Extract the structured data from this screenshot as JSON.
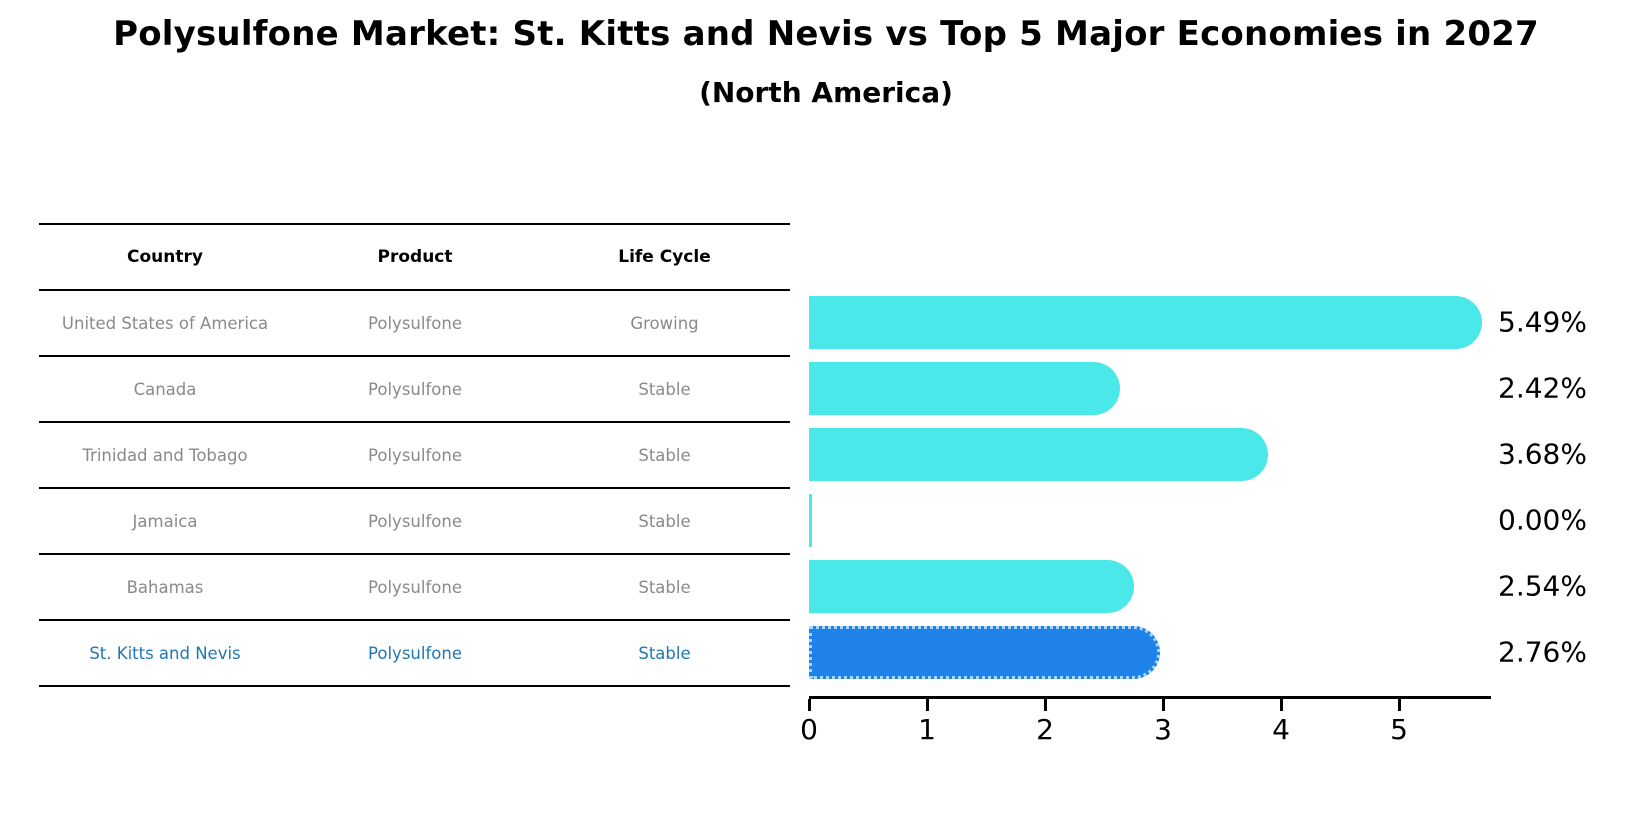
{
  "title": "Polysulfone Market: St. Kitts and Nevis vs Top 5 Major Economies in 2027",
  "subtitle": "(North America)",
  "table": {
    "headers": [
      "Country",
      "Product",
      "Life Cycle"
    ],
    "rows": [
      {
        "country": "United States of America",
        "product": "Polysulfone",
        "life_cycle": "Growing"
      },
      {
        "country": "Canada",
        "product": "Polysulfone",
        "life_cycle": "Stable"
      },
      {
        "country": "Trinidad and Tobago",
        "product": "Polysulfone",
        "life_cycle": "Stable"
      },
      {
        "country": "Jamaica",
        "product": "Polysulfone",
        "life_cycle": "Stable"
      },
      {
        "country": "Bahamas",
        "product": "Polysulfone",
        "life_cycle": "Stable"
      },
      {
        "country": "St. Kitts and Nevis",
        "product": "Polysulfone",
        "life_cycle": "Stable"
      }
    ],
    "highlight_row_index": 5
  },
  "chart_data": {
    "type": "bar",
    "orientation": "horizontal",
    "categories": [
      "United States of America",
      "Canada",
      "Trinidad and Tobago",
      "Jamaica",
      "Bahamas",
      "St. Kitts and Nevis"
    ],
    "values": [
      5.49,
      2.42,
      3.68,
      0.0,
      2.54,
      2.76
    ],
    "value_labels": [
      "5.49%",
      "2.42%",
      "3.68%",
      "0.00%",
      "2.54%",
      "2.76%"
    ],
    "unit": "%",
    "x_ticks": [
      "0",
      "1",
      "2",
      "3",
      "4",
      "5"
    ],
    "xlim": [
      0,
      5.8
    ],
    "grid": false,
    "legend": false,
    "bar_color": "#4AE8E8",
    "highlight_bar_color": "#1E82E8",
    "highlight_index": 5
  },
  "colors": {
    "background": "#FFFFFF",
    "title_text": "#000000",
    "table_header_text": "#000000",
    "table_row_text": "#8A8A8A",
    "highlight_text": "#1F77B4",
    "axis": "#000000",
    "highlight_border_dots": "#A8D8F8"
  }
}
